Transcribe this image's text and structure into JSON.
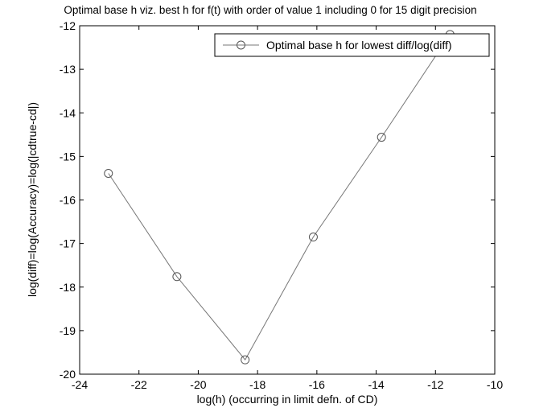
{
  "chart_data": {
    "type": "line",
    "title": "Optimal base h viz. best h for f(t) with order of value 1 including 0  for 15 digit precision",
    "xlabel": "log(h) (occurring in limit defn. of CD)",
    "ylabel": "log(diff)=log(Accuracy)=log(|cdtrue-cd|)",
    "xlim": [
      -24,
      -10
    ],
    "ylim": [
      -20,
      -12
    ],
    "xticks": [
      -24,
      -22,
      -20,
      -18,
      -16,
      -14,
      -12,
      -10
    ],
    "yticks": [
      -20,
      -19,
      -18,
      -17,
      -16,
      -15,
      -14,
      -13,
      -12
    ],
    "xtick_labels": [
      "-24",
      "-22",
      "-20",
      "-18",
      "-16",
      "-14",
      "-12",
      "-10"
    ],
    "ytick_labels": [
      "-20",
      "-19",
      "-18",
      "-17",
      "-16",
      "-15",
      "-14",
      "-13",
      "-12"
    ],
    "grid": false,
    "legend_position": "top-right",
    "series": [
      {
        "name": "Optimal base h for lowest diff/log(diff)",
        "color": "#777777",
        "marker": "circle",
        "x": [
          -23.03,
          -20.72,
          -18.42,
          -16.12,
          -13.82,
          -11.51
        ],
        "y": [
          -15.39,
          -17.76,
          -19.67,
          -16.85,
          -14.56,
          -12.2
        ]
      }
    ]
  }
}
